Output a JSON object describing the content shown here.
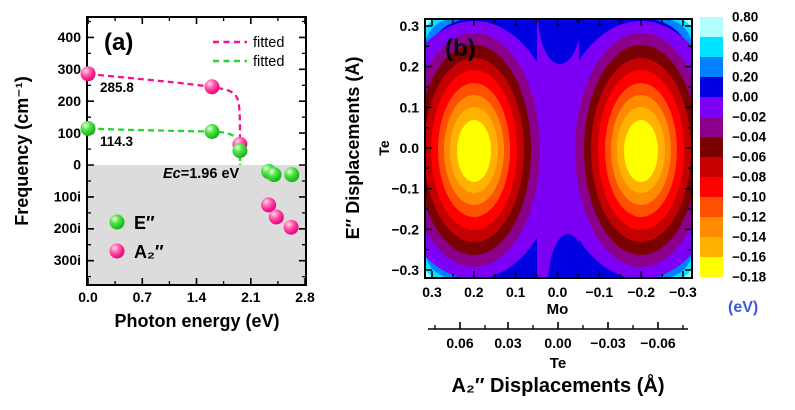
{
  "figure": {
    "background": "#ffffff",
    "panel_a": {
      "tag": "(a)",
      "ylabel": "Frequency (cm⁻¹)",
      "xlabel": "Photon energy (eV)",
      "ytick_labels": [
        "400",
        "300",
        "200",
        "100",
        "0",
        "100i",
        "200i",
        "300i"
      ],
      "xtick_labels": [
        "0.0",
        "0.7",
        "1.4",
        "2.1",
        "2.8"
      ],
      "fit_legend": [
        {
          "label": "fitted",
          "color": "#f5128a"
        },
        {
          "label": "fitted",
          "color": "#2dd42d"
        }
      ],
      "series_legend": [
        {
          "label": "E″",
          "color": "#2dd42d"
        },
        {
          "label": "A₂″",
          "color": "#f5128a"
        }
      ],
      "annotation_a2": "285.8",
      "annotation_e": "114.3",
      "ec_prefix": "Ec",
      "ec_rest": "=1.96 eV",
      "shaded_band_color": "#dcdcdc"
    },
    "panel_b": {
      "tag": "(b)",
      "ylabel": "E″ Displacements (Å)",
      "y_atom": "Te",
      "ytick_labels": [
        "0.3",
        "0.2",
        "0.1",
        "0.0",
        "−0.1",
        "−0.2",
        "−0.3"
      ],
      "mo_tick_labels": [
        "0.3",
        "0.2",
        "0.1",
        "0.0",
        "−0.1",
        "−0.2",
        "−0.3"
      ],
      "mo_label": "Mo",
      "te_tick_labels": [
        "0.06",
        "0.03",
        "0.00",
        "−0.03",
        "−0.06"
      ],
      "te_label": "Te",
      "xlabel": "A₂″ Displacements (Å)",
      "colorbar": {
        "tick_labels": [
          "0.80",
          "0.60",
          "0.40",
          "0.20",
          "0.00",
          "−0.02",
          "−0.04",
          "−0.06",
          "−0.08",
          "−0.10",
          "−0.12",
          "−0.14",
          "−0.16",
          "−0.18"
        ],
        "unit": "(eV)",
        "colors": [
          "#b3ffff",
          "#00e5ff",
          "#0082ff",
          "#0000e0",
          "#7d00f5",
          "#8b008b",
          "#7a0101",
          "#c40000",
          "#ff0000",
          "#ff4f00",
          "#ff8c00",
          "#ffb300",
          "#ffff00"
        ]
      }
    }
  },
  "chart_data": [
    {
      "panel": "a",
      "type": "scatter",
      "title": "(a)",
      "xlabel": "Photon energy (eV)",
      "ylabel": "Frequency (cm⁻¹)",
      "xlim": [
        0,
        2.8
      ],
      "ylim": [
        -350,
        450
      ],
      "xticks": [
        0.0,
        0.7,
        1.4,
        2.1,
        2.8
      ],
      "ytick_labels": [
        "400",
        "300",
        "200",
        "100",
        "0",
        "100i",
        "200i",
        "300i"
      ],
      "note": "tick labels with i denote imaginary frequencies; gray band marks the region below 0",
      "series": [
        {
          "name": "A₂″",
          "color": "#f5128a",
          "points": [
            [
              0.0,
              285.8
            ],
            [
              1.6,
              245
            ],
            [
              1.96,
              65
            ],
            [
              2.33,
              -125
            ],
            [
              2.43,
              -163
            ],
            [
              2.62,
              -195
            ]
          ]
        },
        {
          "name": "E″",
          "color": "#2dd42d",
          "points": [
            [
              0.0,
              114.3
            ],
            [
              1.6,
              105
            ],
            [
              1.96,
              45
            ],
            [
              2.33,
              -20
            ],
            [
              2.4,
              -30
            ],
            [
              2.63,
              -30
            ]
          ]
        }
      ],
      "fits": [
        {
          "label": "fitted",
          "color": "#f5128a",
          "style": "dashed"
        },
        {
          "label": "fitted",
          "color": "#2dd42d",
          "style": "dashed"
        }
      ],
      "annotations": [
        {
          "text": "285.8",
          "x": 0.15,
          "y": 235
        },
        {
          "text": "114.3",
          "x": 0.15,
          "y": 62
        },
        {
          "text": "Ec=1.96 eV",
          "x": 1.35,
          "y": -42
        }
      ],
      "critical_energy_eV": 1.96,
      "legend_position": "fit legend top-right; series legend lower-left"
    },
    {
      "panel": "b",
      "type": "contour",
      "title": "(b)",
      "xlabel": "A₂″ Displacements (Å)",
      "ylabel": "E″ Displacements (Å)",
      "x_axes": [
        {
          "atom": "Mo",
          "ticks": [
            0.3,
            0.2,
            0.1,
            0.0,
            -0.1,
            -0.2,
            -0.3
          ]
        },
        {
          "atom": "Te",
          "ticks": [
            0.06,
            0.03,
            0.0,
            -0.03,
            -0.06
          ]
        }
      ],
      "y_axis_atom": "Te",
      "yticks": [
        0.3,
        0.2,
        0.1,
        0.0,
        -0.1,
        -0.2,
        -0.3
      ],
      "x_direction": "values decrease left to right",
      "levels_eV": [
        0.8,
        0.6,
        0.4,
        0.2,
        0.0,
        -0.02,
        -0.04,
        -0.06,
        -0.08,
        -0.1,
        -0.12,
        -0.14,
        -0.16,
        -0.18
      ],
      "colorbar_unit": "(eV)",
      "minima": [
        {
          "mo_displacement": 0.2,
          "e_displacement": 0.0,
          "value_eV": "< -0.18"
        },
        {
          "mo_displacement": -0.2,
          "e_displacement": 0.0,
          "value_eV": "< -0.18"
        }
      ],
      "center_value_eV": "0 to -0.02 (violet saddle channel at x=0)",
      "corner_value_eV": "up to 0.80 (cyan corners)"
    }
  ]
}
